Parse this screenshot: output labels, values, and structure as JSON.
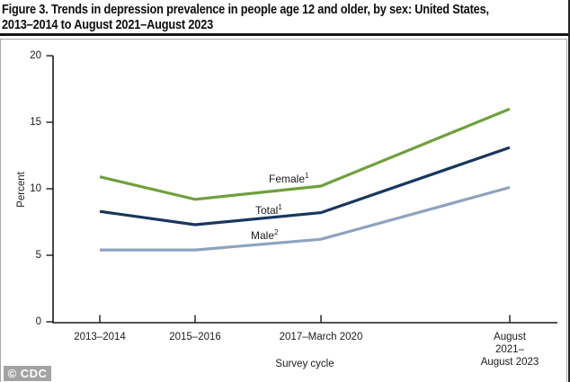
{
  "figure": {
    "title_line1": "Figure 3. Trends in depression prevalence in people age 12 and older, by sex: United States,",
    "title_line2": "2013–2014 to August 2021–August 2023",
    "watermark": "© CDC"
  },
  "chart_data": {
    "type": "line",
    "title": "Trends in depression prevalence in people age 12 and older, by sex: United States, 2013–2014 to August 2021–August 2023",
    "xlabel": "Survey cycle",
    "ylabel": "Percent",
    "ylim": [
      0,
      20
    ],
    "yticks": [
      0,
      5,
      10,
      15,
      20
    ],
    "categories": [
      "2013–2014",
      "2015–2016",
      "2017–March 2020",
      "August 2021–August 2023"
    ],
    "x_display": [
      "2013–2014",
      "2015–2016",
      "2017–March 2020",
      "August 2021–\nAugust 2023"
    ],
    "series": [
      {
        "name": "Female",
        "sup": "1",
        "color": "#6fa03c",
        "values": [
          10.9,
          9.2,
          10.2,
          16.0
        ]
      },
      {
        "name": "Total",
        "sup": "1",
        "color": "#17375e",
        "values": [
          8.3,
          7.3,
          8.2,
          13.1
        ]
      },
      {
        "name": "Male",
        "sup": "2",
        "color": "#8ea3be",
        "values": [
          5.4,
          5.4,
          6.2,
          10.1
        ]
      }
    ],
    "grid": false,
    "legend_position": "inline-labels",
    "axis_color": "#1a1a1a"
  }
}
